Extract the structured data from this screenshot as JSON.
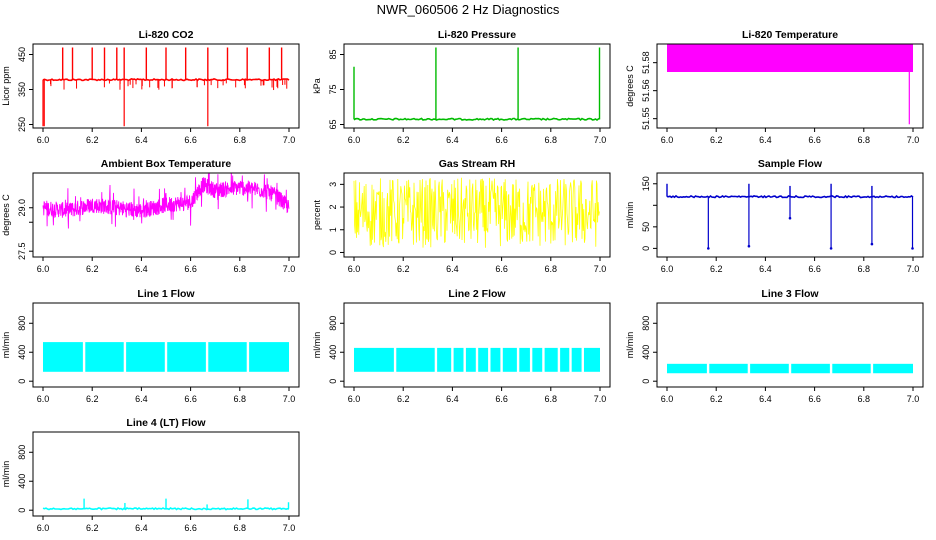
{
  "title": "NWR_060506  2 Hz Diagnostics",
  "chart_data": [
    {
      "type": "line",
      "title": "Li-820 CO2",
      "ylabel": "Licor ppm",
      "color": "#ff0000",
      "xlim": [
        6.0,
        7.0
      ],
      "ylim": [
        240,
        480
      ],
      "xticks": [
        "6.0",
        "6.2",
        "6.4",
        "6.6",
        "6.8",
        "7.0"
      ],
      "yticks": [
        {
          "value": 250,
          "label": "250"
        },
        {
          "value": 350,
          "label": "350"
        },
        {
          "value": 450,
          "label": "450"
        }
      ],
      "baseline": 378,
      "spike_tops": [
        6.08,
        6.12,
        6.2,
        6.25,
        6.3,
        6.33,
        6.42,
        6.5,
        6.58,
        6.67,
        6.75,
        6.83,
        6.92,
        6.97
      ],
      "dips": [
        6.0,
        6.005,
        6.33,
        6.67
      ],
      "x": [
        6.0,
        6.1,
        6.2,
        6.3,
        6.4,
        6.5,
        6.6,
        6.7,
        6.8,
        6.9,
        7.0
      ],
      "y": [
        378,
        378,
        379,
        378,
        378,
        378,
        379,
        378,
        378,
        378,
        378
      ]
    },
    {
      "type": "line",
      "title": "Li-820 Pressure",
      "ylabel": "kPa",
      "color": "#00bb00",
      "xlim": [
        6.0,
        7.0
      ],
      "ylim": [
        64,
        88
      ],
      "xticks": [
        "6.0",
        "6.2",
        "6.4",
        "6.6",
        "6.8",
        "7.0"
      ],
      "yticks": [
        {
          "value": 65,
          "label": "65"
        },
        {
          "value": 75,
          "label": "75"
        },
        {
          "value": 85,
          "label": "85"
        }
      ],
      "baseline": 66.5,
      "spikes": [
        {
          "x": 6.0,
          "top": 81.5
        },
        {
          "x": 6.333,
          "top": 87
        },
        {
          "x": 6.667,
          "top": 87
        },
        {
          "x": 6.998,
          "top": 87
        }
      ],
      "x": [
        6.0,
        6.2,
        6.4,
        6.6,
        6.8,
        7.0
      ],
      "y": [
        66.5,
        66.5,
        66.5,
        66.5,
        66.5,
        66.5
      ]
    },
    {
      "type": "area",
      "title": "Li-820 Temperature",
      "ylabel": "degrees C",
      "color": "#ff00ff",
      "xlim": [
        6.0,
        7.0
      ],
      "ylim": [
        51.545,
        51.59
      ],
      "xticks": [
        "6.0",
        "6.2",
        "6.4",
        "6.6",
        "6.8",
        "7.0"
      ],
      "yticks": [
        {
          "value": 51.55,
          "label": "51.55"
        },
        {
          "value": 51.565,
          "label": "51.56"
        },
        {
          "value": 51.58,
          "label": "51.58"
        }
      ],
      "band": [
        51.575,
        51.59
      ],
      "dip": {
        "x": 6.985,
        "value": 51.547
      },
      "x": [
        6.0,
        7.0
      ],
      "y": [
        51.58,
        51.58
      ]
    },
    {
      "type": "line",
      "title": "Ambient Box Temperature",
      "ylabel": "degrees C",
      "color": "#ff00ff",
      "xlim": [
        6.0,
        7.0
      ],
      "ylim": [
        27.3,
        30.2
      ],
      "xticks": [
        "6.0",
        "6.2",
        "6.4",
        "6.6",
        "6.8",
        "7.0"
      ],
      "yticks": [
        {
          "value": 27.5,
          "label": "27.5"
        },
        {
          "value": 28.5,
          "label": ""
        },
        {
          "value": 29.0,
          "label": "29.0"
        }
      ],
      "x": [
        6.0,
        6.1,
        6.2,
        6.3,
        6.4,
        6.5,
        6.6,
        6.65,
        6.7,
        6.8,
        6.9,
        6.95,
        7.0
      ],
      "y": [
        29.0,
        28.9,
        29.1,
        29.0,
        28.9,
        29.1,
        29.2,
        29.8,
        29.6,
        29.7,
        29.6,
        29.4,
        29.0
      ],
      "noise": 0.55
    },
    {
      "type": "line",
      "title": "Gas Stream RH",
      "ylabel": "percent",
      "color": "#ffff00",
      "xlim": [
        6.0,
        7.0
      ],
      "ylim": [
        -0.2,
        3.5
      ],
      "xticks": [
        "6.0",
        "6.2",
        "6.4",
        "6.6",
        "6.8",
        "7.0"
      ],
      "yticks": [
        {
          "value": 0,
          "label": "0"
        },
        {
          "value": 1,
          "label": "1"
        },
        {
          "value": 2,
          "label": "2"
        },
        {
          "value": 3,
          "label": "3"
        }
      ],
      "x": [
        6.0,
        7.0
      ],
      "y": [
        1.7,
        1.7
      ],
      "range": [
        0.2,
        3.3
      ]
    },
    {
      "type": "line",
      "title": "Sample Flow",
      "ylabel": "ml/min",
      "color": "#0000cc",
      "xlim": [
        6.0,
        7.0
      ],
      "ylim": [
        -20,
        175
      ],
      "xticks": [
        "6.0",
        "6.2",
        "6.4",
        "6.6",
        "6.8",
        "7.0"
      ],
      "yticks": [
        {
          "value": 0,
          "label": "0"
        },
        {
          "value": 50,
          "label": "50"
        },
        {
          "value": 100,
          "label": ""
        },
        {
          "value": 150,
          "label": "150"
        }
      ],
      "baseline": 120,
      "dips": [
        {
          "x": 6.168,
          "bottom": 0
        },
        {
          "x": 6.333,
          "bottom": 5
        },
        {
          "x": 6.5,
          "bottom": 70
        },
        {
          "x": 6.667,
          "bottom": 0
        },
        {
          "x": 6.833,
          "bottom": 10
        },
        {
          "x": 6.998,
          "bottom": 0
        }
      ],
      "spikes": [
        {
          "x": 6.0,
          "top": 150
        },
        {
          "x": 6.333,
          "top": 150
        },
        {
          "x": 6.5,
          "top": 145
        },
        {
          "x": 6.667,
          "top": 150
        },
        {
          "x": 6.833,
          "top": 145
        }
      ],
      "x": [
        6.0,
        7.0
      ],
      "y": [
        120,
        120
      ]
    },
    {
      "type": "area",
      "title": "Line 1 Flow",
      "ylabel": "ml/min",
      "color": "#00ffff",
      "xlim": [
        6.0,
        7.0
      ],
      "ylim": [
        -80,
        1080
      ],
      "xticks": [
        "6.0",
        "6.2",
        "6.4",
        "6.6",
        "6.8",
        "7.0"
      ],
      "yticks": [
        {
          "value": 0,
          "label": "0"
        },
        {
          "value": 400,
          "label": "400"
        },
        {
          "value": 800,
          "label": "800"
        }
      ],
      "band": [
        130,
        540
      ],
      "gaps": [
        6.167,
        6.333,
        6.5,
        6.667,
        6.833
      ],
      "x": [
        6.0,
        7.0
      ],
      "y": [
        520,
        520
      ]
    },
    {
      "type": "area",
      "title": "Line 2 Flow",
      "ylabel": "ml/min",
      "color": "#00ffff",
      "xlim": [
        6.0,
        7.0
      ],
      "ylim": [
        -80,
        1080
      ],
      "xticks": [
        "6.0",
        "6.2",
        "6.4",
        "6.6",
        "6.8",
        "7.0"
      ],
      "yticks": [
        {
          "value": 0,
          "label": "0"
        },
        {
          "value": 400,
          "label": "400"
        },
        {
          "value": 800,
          "label": "800"
        }
      ],
      "band": [
        130,
        460
      ],
      "gaps": [
        6.167,
        6.333,
        6.4,
        6.45,
        6.5,
        6.55,
        6.6,
        6.667,
        6.72,
        6.77,
        6.833,
        6.88,
        6.93
      ],
      "x": [
        6.0,
        7.0
      ],
      "y": [
        440,
        440
      ]
    },
    {
      "type": "area",
      "title": "Line 3 Flow",
      "ylabel": "ml/min",
      "color": "#00ffff",
      "xlim": [
        6.0,
        7.0
      ],
      "ylim": [
        -80,
        1080
      ],
      "xticks": [
        "6.0",
        "6.2",
        "6.4",
        "6.6",
        "6.8",
        "7.0"
      ],
      "yticks": [
        {
          "value": 0,
          "label": "0"
        },
        {
          "value": 400,
          "label": "400"
        },
        {
          "value": 800,
          "label": "800"
        }
      ],
      "band": [
        110,
        240
      ],
      "gaps": [
        6.167,
        6.333,
        6.5,
        6.667,
        6.833
      ],
      "x": [
        6.0,
        7.0
      ],
      "y": [
        200,
        200
      ]
    },
    {
      "type": "line",
      "title": "Line 4 (LT) Flow",
      "ylabel": "ml/min",
      "color": "#00ffff",
      "xlim": [
        6.0,
        7.0
      ],
      "ylim": [
        -80,
        1080
      ],
      "xticks": [
        "6.0",
        "6.2",
        "6.4",
        "6.6",
        "6.8",
        "7.0"
      ],
      "yticks": [
        {
          "value": 0,
          "label": "0"
        },
        {
          "value": 400,
          "label": "400"
        },
        {
          "value": 800,
          "label": "800"
        }
      ],
      "baseline": 20,
      "spikes": [
        {
          "x": 6.167,
          "top": 160
        },
        {
          "x": 6.333,
          "top": 100
        },
        {
          "x": 6.5,
          "top": 160
        },
        {
          "x": 6.667,
          "top": 80
        },
        {
          "x": 6.833,
          "top": 150
        },
        {
          "x": 6.998,
          "top": 110
        }
      ],
      "x": [
        6.0,
        7.0
      ],
      "y": [
        20,
        20
      ]
    }
  ]
}
